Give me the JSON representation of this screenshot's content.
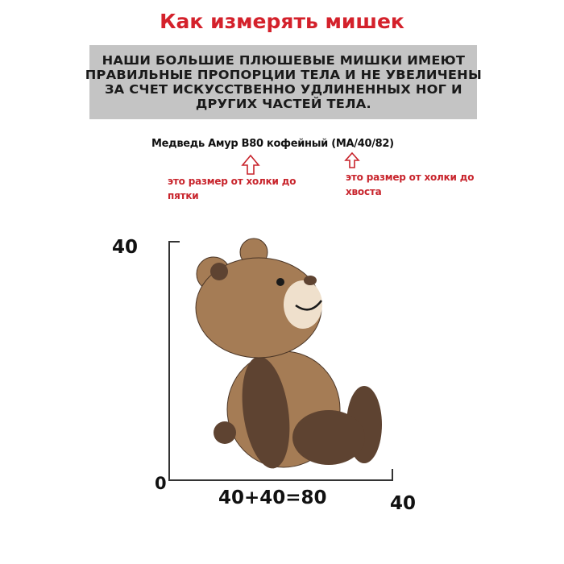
{
  "title": "Как измерять мишек",
  "banner": {
    "lines": [
      "НАШИ БОЛЬШИЕ ПЛЮШЕВЫЕ МИШКИ ИМЕЮТ",
      "ПРАВИЛЬНЫЕ ПРОПОРЦИИ ТЕЛА И НЕ УВЕЛИЧЕНЫ",
      "ЗА СЧЕТ ИСКУССТВЕННО УДЛИНЕННЫХ НОГ И",
      "ДРУГИХ ЧАСТЕЙ ТЕЛА."
    ]
  },
  "product_name": "Медведь Амур В80 кофейный (МА/40/82)",
  "annotations": [
    {
      "line1": "это размер от холки до",
      "line2": "пятки",
      "icon": "up-arrow-outline-icon"
    },
    {
      "line1": "это размер от холки до",
      "line2": "хвоста",
      "icon": "up-arrow-outline-icon"
    }
  ],
  "dimensions": {
    "height_top": "40",
    "origin": "0",
    "length_formula": "40+40=80",
    "depth": "40"
  },
  "colors": {
    "title_red": "#d4212b",
    "banner_gray": "#c4c4c4",
    "bear_light": "#a57c55",
    "bear_dark": "#5e4331",
    "muzzle": "#efe0cc"
  }
}
